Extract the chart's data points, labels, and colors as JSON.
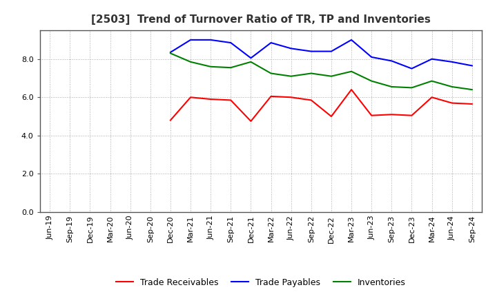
{
  "title": "[2503]  Trend of Turnover Ratio of TR, TP and Inventories",
  "x_labels": [
    "Jun-19",
    "Sep-19",
    "Dec-19",
    "Mar-20",
    "Jun-20",
    "Sep-20",
    "Dec-20",
    "Mar-21",
    "Jun-21",
    "Sep-21",
    "Dec-21",
    "Mar-22",
    "Jun-22",
    "Sep-22",
    "Dec-22",
    "Mar-23",
    "Jun-23",
    "Sep-23",
    "Dec-23",
    "Mar-24",
    "Jun-24",
    "Sep-24"
  ],
  "trade_receivables": [
    null,
    null,
    null,
    null,
    null,
    null,
    4.8,
    6.0,
    5.9,
    5.85,
    4.75,
    6.05,
    6.0,
    5.85,
    5.0,
    6.4,
    5.05,
    5.1,
    5.05,
    6.0,
    5.7,
    5.65
  ],
  "trade_payables": [
    null,
    null,
    null,
    null,
    null,
    null,
    8.35,
    9.0,
    9.0,
    8.85,
    8.05,
    8.85,
    8.55,
    8.4,
    8.4,
    9.0,
    8.1,
    7.9,
    7.5,
    8.0,
    7.85,
    7.65
  ],
  "inventories": [
    null,
    null,
    null,
    null,
    null,
    null,
    8.3,
    7.85,
    7.6,
    7.55,
    7.85,
    7.25,
    7.1,
    7.25,
    7.1,
    7.35,
    6.85,
    6.55,
    6.5,
    6.85,
    6.55,
    6.4
  ],
  "trade_receivables_color": "#FF0000",
  "trade_payables_color": "#0000FF",
  "inventories_color": "#008000",
  "ylim": [
    0.0,
    9.5
  ],
  "yticks": [
    0.0,
    2.0,
    4.0,
    6.0,
    8.0
  ],
  "background_color": "#FFFFFF",
  "grid_color": "#AAAAAA",
  "title_fontsize": 11,
  "legend_fontsize": 9,
  "axis_fontsize": 8,
  "title_color": "#333333",
  "line_width": 1.5
}
